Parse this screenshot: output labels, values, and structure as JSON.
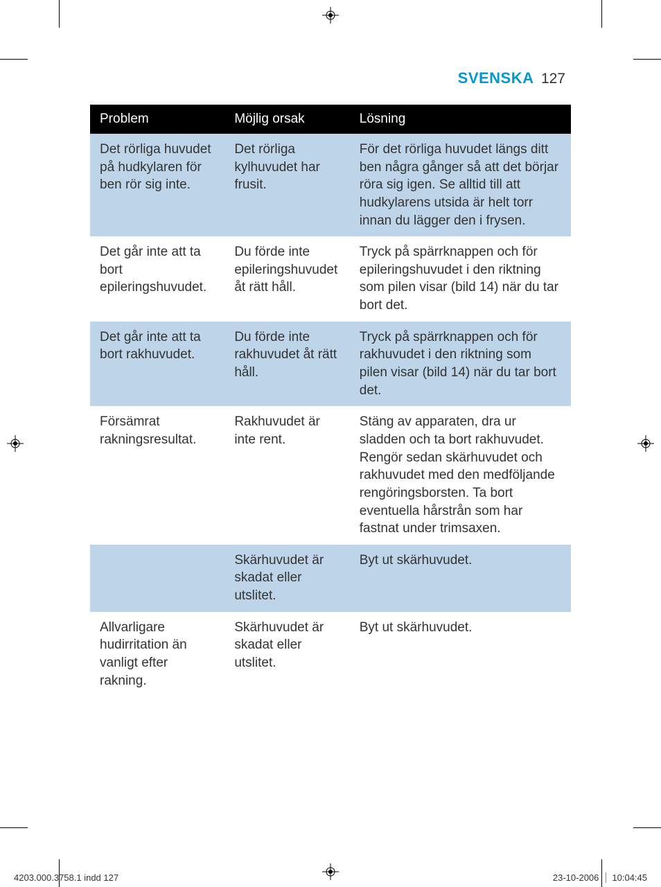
{
  "header": {
    "language": "SVENSKA",
    "language_color": "#0099d4",
    "page_number": "127"
  },
  "table": {
    "header_bg": "#000000",
    "header_fg": "#ffffff",
    "stripe_color": "#bed5e9",
    "columns": [
      "Problem",
      "Möjlig orsak",
      "Lösning"
    ],
    "rows": [
      {
        "problem": "Det rörliga huvudet på hudkylaren för ben rör sig inte.",
        "cause": "Det rörliga kylhuvudet har frusit.",
        "solution": "För det rörliga huvudet längs ditt ben några gånger så att det börjar röra sig igen. Se alltid till att hudkylarens utsida är helt torr innan du lägger den i frysen."
      },
      {
        "problem": "Det går inte att ta bort epileringshuvudet.",
        "cause": "Du förde inte epileringshuvudet åt rätt håll.",
        "solution": "Tryck på spärrknappen och för epileringshuvudet i den riktning som pilen visar (bild 14) när du tar bort det."
      },
      {
        "problem": "Det går inte att ta bort rakhuvudet.",
        "cause": "Du förde inte rakhuvudet åt rätt håll.",
        "solution": "Tryck på spärrknappen och för rakhuvudet i den riktning som pilen visar (bild 14) när du tar bort det."
      },
      {
        "problem": "Försämrat rakningsresultat.",
        "cause": "Rakhuvudet är inte rent.",
        "solution": "Stäng av apparaten, dra ur sladden och ta bort rakhuvudet. Rengör sedan skärhuvudet och rakhuvudet med den medföljande rengöringsborsten. Ta bort eventuella hårstrån som har fastnat under trimsaxen."
      },
      {
        "problem": "",
        "cause": "Skärhuvudet är skadat eller utslitet.",
        "solution": "Byt ut skärhuvudet."
      },
      {
        "problem": "Allvarligare hudirritation än vanligt efter rakning.",
        "cause": "Skärhuvudet är skadat eller utslitet.",
        "solution": "Byt ut skärhuvudet."
      }
    ]
  },
  "footer": {
    "file_ref": "4203.000.3758.1 indd   127",
    "date": "23-10-2006",
    "time": "10:04:45"
  }
}
